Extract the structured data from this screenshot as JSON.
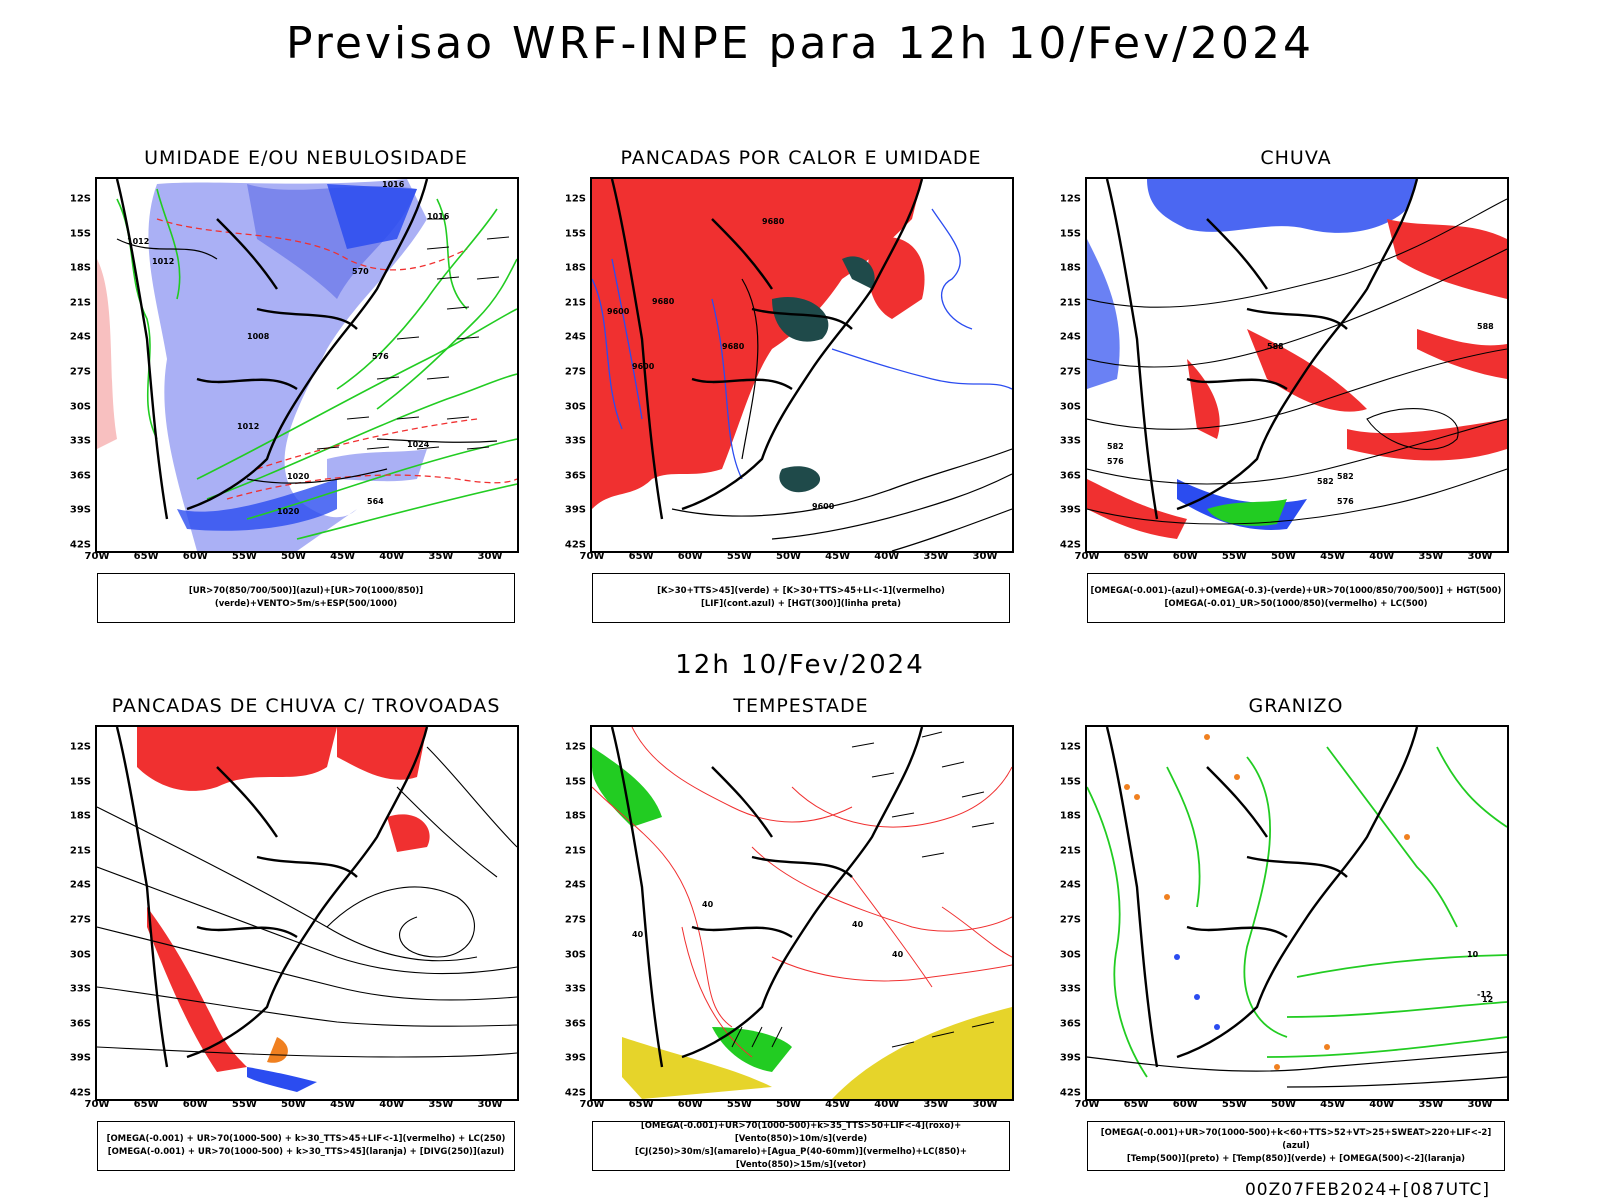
{
  "header": {
    "title": "Previsao WRF-INPE  para 12h 10/Fev/2024"
  },
  "mid": {
    "title": "12h 10/Fev/2024"
  },
  "footer": {
    "text": "00Z07FEB2024+[087UTC]"
  },
  "axes": {
    "lat_labels": [
      "12S",
      "15S",
      "18S",
      "21S",
      "24S",
      "27S",
      "30S",
      "33S",
      "36S",
      "39S",
      "42S"
    ],
    "lon_labels": [
      "70W",
      "65W",
      "60W",
      "55W",
      "50W",
      "45W",
      "40W",
      "35W",
      "30W"
    ]
  },
  "panels": [
    {
      "title": "UMIDADE E/OU NEBULOSIDADE",
      "legend": [
        "[UR>70(850/700/500)](azul)+[UR>70(1000/850)](verde)+VENTO>5m/s+ESP(500/1000)"
      ],
      "contour_labels": [
        "1016",
        "1012",
        "1012",
        "1016",
        "1020",
        "1024",
        "1012",
        "570",
        "576",
        "564",
        "1008",
        "1020"
      ]
    },
    {
      "title": "PANCADAS POR CALOR E UMIDADE",
      "legend": [
        "[K>30+TTS>45](verde) + [K>30+TTS>45+LI<-1](vermelho)",
        "[LIF](cont.azul) + [HGT(300)](linha preta)"
      ],
      "contour_labels": [
        "9680",
        "9680",
        "9600",
        "9600",
        "9680",
        "9600"
      ]
    },
    {
      "title": "CHUVA",
      "legend": [
        "[OMEGA(-0.001)-(azul)+OMEGA(-0.3)-(verde)+UR>70(1000/850/700/500)] + HGT(500)",
        "[OMEGA(-0.01)_UR>50(1000/850)(vermelho) + LC(500)"
      ],
      "contour_labels": [
        "588",
        "588",
        "582",
        "576",
        "582",
        "582",
        "576"
      ]
    },
    {
      "title": "PANCADAS DE CHUVA C/ TROVOADAS",
      "legend": [
        "[OMEGA(-0.001) + UR>70(1000-500) + k>30_TTS>45+LIF<-1](vermelho) + LC(250)",
        "[OMEGA(-0.001) + UR>70(1000-500) + k>30_TTS>45](laranja) + [DIVG(250)](azul)"
      ],
      "contour_labels": []
    },
    {
      "title": "TEMPESTADE",
      "legend": [
        "[OMEGA(-0.001)+UR>70(1000-500)+k>35_TTS>50+LIF<-4](roxo)+[Vento(850)>10m/s](verde)",
        "[CJ(250)>30m/s](amarelo)+[Agua_P(40-60mm)](vermelho)+LC(850)+[Vento(850)>15m/s](vetor)"
      ],
      "contour_labels": [
        "40",
        "40",
        "40",
        "40"
      ]
    },
    {
      "title": "GRANIZO",
      "legend": [
        "[OMEGA(-0.001)+UR>70(1000-500)+k<60+TTS>52+VT>25+SWEAT>220+LIF<-2](azul)",
        "[Temp(500)](preto) + [Temp(850)](verde) + [OMEGA(500)<-2](laranja)"
      ],
      "contour_labels": [
        "10",
        "12",
        "-12"
      ]
    }
  ],
  "colors": {
    "blue": "#2b4cf0",
    "lightblue": "#aab0f5",
    "midblue": "#7b86ec",
    "green": "#22cc22",
    "red": "#f03030",
    "darkteal": "#1f4a4a",
    "yellow": "#e6d42a",
    "orange": "#f08020",
    "purple": "#9020c0"
  }
}
